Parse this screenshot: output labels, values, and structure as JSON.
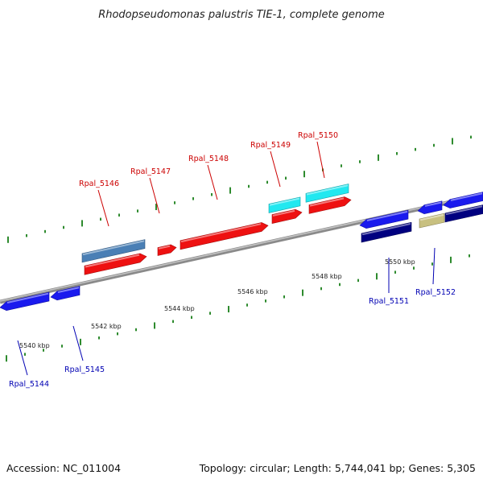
{
  "title": "Rhodopseudomonas palustris TIE-1, complete genome",
  "footer": {
    "accession": "Accession: NC_011004",
    "summary": "Topology: circular; Length: 5,744,041 bp; Genes: 5,305"
  },
  "colors": {
    "backbone": "#8a8a8a",
    "tick": "#2e8b2e",
    "label_top": "#cc0000",
    "label_bottom": "#0000b3"
  },
  "scale_labels": [
    {
      "text": "5540 kbp"
    },
    {
      "text": "5542 kbp"
    },
    {
      "text": "5544 kbp"
    },
    {
      "text": "5546 kbp"
    },
    {
      "text": "5548 kbp"
    },
    {
      "text": "5550 kbp"
    }
  ],
  "gene_labels": [
    {
      "text": "Rpal_5146",
      "color": "#cc0000"
    },
    {
      "text": "Rpal_5147",
      "color": "#cc0000"
    },
    {
      "text": "Rpal_5148",
      "color": "#cc0000"
    },
    {
      "text": "Rpal_5149",
      "color": "#cc0000"
    },
    {
      "text": "Rpal_5150",
      "color": "#cc0000"
    },
    {
      "text": "Rpal_5144",
      "color": "#0000b3"
    },
    {
      "text": "Rpal_5145",
      "color": "#0000b3"
    },
    {
      "text": "Rpal_5151",
      "color": "#0000b3"
    },
    {
      "text": "Rpal_5152",
      "color": "#0000b3"
    }
  ],
  "features": [
    {
      "color": "#4a7fb5"
    },
    {
      "color": "#ee1111"
    },
    {
      "color": "#ee1111"
    },
    {
      "color": "#ee1111"
    },
    {
      "color": "#22e8f0"
    },
    {
      "color": "#ee1111"
    },
    {
      "color": "#22e8f0"
    },
    {
      "color": "#ee1111"
    },
    {
      "color": "#1a1aee"
    },
    {
      "color": "#1a1aee"
    },
    {
      "color": "#1a1aee"
    },
    {
      "color": "#000080"
    },
    {
      "color": "#1a1aee"
    },
    {
      "color": "#c8c080"
    },
    {
      "color": "#1a1aee"
    },
    {
      "color": "#000080"
    }
  ]
}
